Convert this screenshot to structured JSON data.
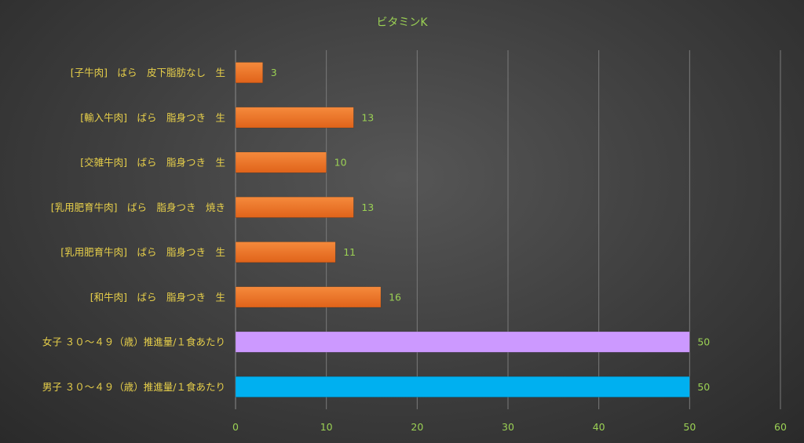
{
  "chart_data": {
    "type": "bar",
    "orientation": "horizontal",
    "title": "ビタミンK",
    "categories": [
      "[子牛肉]　ばら　皮下脂肪なし　生",
      "[輸入牛肉]　ばら　脂身つき　生",
      "[交雑牛肉]　ばら　脂身つき　生",
      "[乳用肥育牛肉]　ばら　脂身つき　焼き",
      "[乳用肥育牛肉]　ばら　脂身つき　生",
      "[和牛肉]　ばら　脂身つき　生",
      "女子 ３０～４９（歳）推進量/１食あたり",
      "男子 ３０～４９（歳）推進量/１食あたり"
    ],
    "values": [
      3,
      13,
      10,
      13,
      11,
      16,
      50,
      50
    ],
    "bar_colors": [
      "#f07a28",
      "#f07a28",
      "#f07a28",
      "#f07a28",
      "#f07a28",
      "#f07a28",
      "#cc99ff",
      "#00b0f0"
    ],
    "xlim": [
      0,
      60
    ],
    "xticks": [
      "0",
      "10",
      "20",
      "30",
      "40",
      "50",
      "60"
    ],
    "grid": true,
    "legend": "none"
  }
}
